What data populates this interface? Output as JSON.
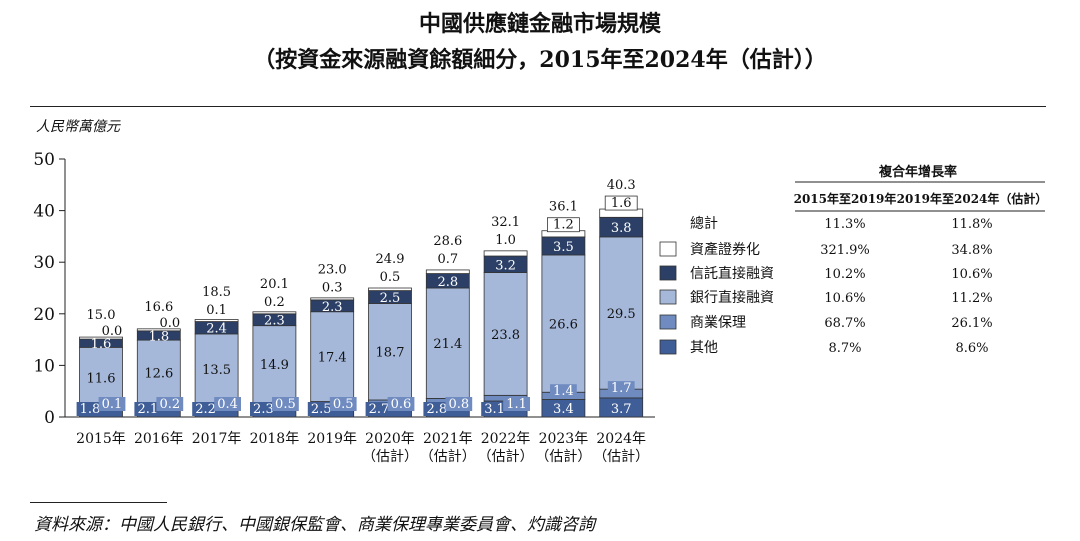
{
  "title_line1": "中國供應鏈金融市場規模",
  "title_line2": "（按資金來源融資餘額細分，2015年至2024年（估計））",
  "unit_label": "人民幣萬億元",
  "source_note": "資料來源：中國人民銀行、中國銀保監會、商業保理專業委員會、灼識咨詢",
  "colors": {
    "abs": "#ffffff",
    "trust": "#2b3f67",
    "bank": "#a6b8da",
    "factoring": "#6f8bc0",
    "other": "#3f5e98"
  },
  "legend": [
    {
      "key": "total",
      "label": "總計"
    },
    {
      "key": "abs",
      "label": "資產證券化"
    },
    {
      "key": "trust",
      "label": "信託直接融資"
    },
    {
      "key": "bank",
      "label": "銀行直接融資"
    },
    {
      "key": "factoring",
      "label": "商業保理"
    },
    {
      "key": "other",
      "label": "其他"
    }
  ],
  "cagr_table": {
    "title": "複合年增長率",
    "headers": [
      "2015年至2019年",
      "2019年至2024年（估計）"
    ],
    "rows": [
      [
        "11.3%",
        "11.8%"
      ],
      [
        "321.9%",
        "34.8%"
      ],
      [
        "10.2%",
        "10.6%"
      ],
      [
        "10.6%",
        "11.2%"
      ],
      [
        "68.7%",
        "26.1%"
      ],
      [
        "8.7%",
        "8.6%"
      ]
    ]
  },
  "chart_data": {
    "type": "bar",
    "stacked": true,
    "ylim": [
      0,
      50
    ],
    "yticks": [
      0,
      10,
      20,
      30,
      40,
      50
    ],
    "categories": [
      [
        "2015年"
      ],
      [
        "2016年"
      ],
      [
        "2017年"
      ],
      [
        "2018年"
      ],
      [
        "2019年"
      ],
      [
        "2020年",
        "（估計）"
      ],
      [
        "2021年",
        "（估計）"
      ],
      [
        "2022年",
        "（估計）"
      ],
      [
        "2023年",
        "（估計）"
      ],
      [
        "2024年",
        "（估計）"
      ]
    ],
    "totals": [
      "15.0",
      "16.6",
      "18.5",
      "20.1",
      "23.0",
      "24.9",
      "28.6",
      "32.1",
      "36.1",
      "40.3"
    ],
    "series": [
      {
        "name": "其他",
        "key": "other",
        "values": [
          1.8,
          2.1,
          2.2,
          2.3,
          2.5,
          2.7,
          2.8,
          3.1,
          3.4,
          3.7
        ]
      },
      {
        "name": "商業保理",
        "key": "factoring",
        "values": [
          0.1,
          0.2,
          0.4,
          0.5,
          0.5,
          0.6,
          0.8,
          1.1,
          1.4,
          1.7
        ]
      },
      {
        "name": "銀行直接融資",
        "key": "bank",
        "values": [
          11.6,
          12.6,
          13.5,
          14.9,
          17.4,
          18.7,
          21.4,
          23.8,
          26.6,
          29.5
        ]
      },
      {
        "name": "信託直接融資",
        "key": "trust",
        "values": [
          1.6,
          1.8,
          2.4,
          2.3,
          2.3,
          2.5,
          2.8,
          3.2,
          3.5,
          3.8
        ]
      },
      {
        "name": "資產證券化",
        "key": "abs",
        "values": [
          0.0,
          0.0,
          0.1,
          0.2,
          0.3,
          0.5,
          0.7,
          1.0,
          1.2,
          1.6
        ]
      }
    ]
  }
}
